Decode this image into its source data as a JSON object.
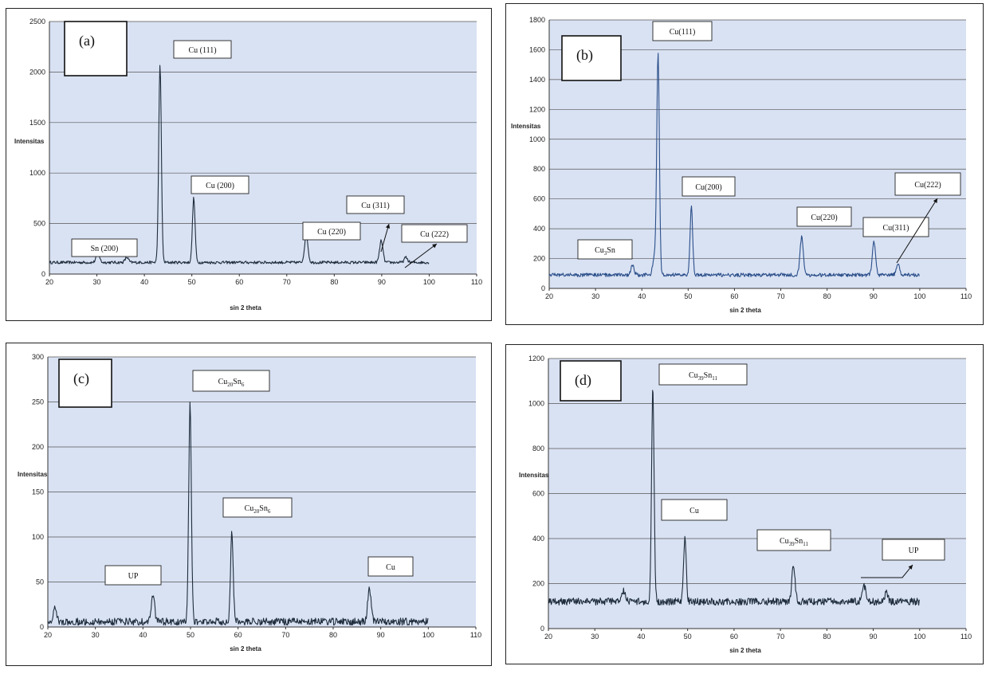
{
  "chart_data": [
    {
      "panel": "(a)",
      "type": "line",
      "xlabel": "sin 2 theta",
      "ylabel": "Intensitas",
      "xlim": [
        20,
        110
      ],
      "ylim": [
        0,
        2500
      ],
      "xticks": [
        20,
        30,
        40,
        50,
        60,
        70,
        80,
        90,
        100,
        110
      ],
      "yticks": [
        0,
        500,
        1000,
        1500,
        2000,
        2500
      ],
      "grid": true,
      "trace_color": "#1f2d3d",
      "series": {
        "x_range": [
          20,
          100
        ],
        "baseline": 115,
        "noise": 14,
        "peaks": [
          {
            "x": 30.2,
            "y": 215
          },
          {
            "x": 36.3,
            "y": 165
          },
          {
            "x": 43.3,
            "y": 2060
          },
          {
            "x": 50.4,
            "y": 755
          },
          {
            "x": 74.1,
            "y": 395
          },
          {
            "x": 89.9,
            "y": 330
          },
          {
            "x": 95.1,
            "y": 165
          }
        ]
      },
      "annotations": [
        {
          "text": "Sn (200)",
          "x": 30.2
        },
        {
          "text": "Cu (111)",
          "x": 43.3
        },
        {
          "text": "Cu (200)",
          "x": 50.4
        },
        {
          "text": "Cu (220)",
          "x": 74.1
        },
        {
          "text": "Cu (311)",
          "x": 89.9
        },
        {
          "text": "Cu (222)",
          "x": 95.1
        }
      ]
    },
    {
      "panel": "(b)",
      "type": "line",
      "xlabel": "sin 2 theta",
      "ylabel": "Intensitas",
      "xlim": [
        20,
        110
      ],
      "ylim": [
        0,
        1800
      ],
      "xticks": [
        20,
        30,
        40,
        50,
        60,
        70,
        80,
        90,
        100,
        110
      ],
      "yticks": [
        0,
        200,
        400,
        600,
        800,
        1000,
        1200,
        1400,
        1600,
        1800
      ],
      "grid": true,
      "trace_color": "#2b4f8a",
      "series": {
        "x_range": [
          20,
          100
        ],
        "baseline": 90,
        "noise": 12,
        "peaks": [
          {
            "x": 38.0,
            "y": 155
          },
          {
            "x": 42.7,
            "y": 210
          },
          {
            "x": 43.5,
            "y": 1570
          },
          {
            "x": 50.7,
            "y": 545
          },
          {
            "x": 74.5,
            "y": 345
          },
          {
            "x": 90.1,
            "y": 310
          },
          {
            "x": 95.3,
            "y": 170
          }
        ]
      },
      "annotations": [
        {
          "text": "Cu3Sn",
          "x": 38.0
        },
        {
          "text": "Cu(111)",
          "x": 43.5
        },
        {
          "text": "Cu(200)",
          "x": 50.7
        },
        {
          "text": "Cu(220)",
          "x": 74.5
        },
        {
          "text": "Cu(311)",
          "x": 90.1
        },
        {
          "text": "Cu(222)",
          "x": 95.3
        }
      ]
    },
    {
      "panel": "(c)",
      "type": "line",
      "xlabel": "sin 2 theta",
      "ylabel": "Intensitas",
      "xlim": [
        20,
        110
      ],
      "ylim": [
        0,
        300
      ],
      "xticks": [
        20,
        30,
        40,
        50,
        60,
        70,
        80,
        90,
        100,
        110
      ],
      "yticks": [
        0,
        50,
        100,
        150,
        200,
        250,
        300
      ],
      "grid": true,
      "trace_color": "#1f2d3d",
      "series": {
        "x_range": [
          20,
          100
        ],
        "baseline": 6,
        "noise": 4,
        "peaks": [
          {
            "x": 21.5,
            "y": 22
          },
          {
            "x": 42.1,
            "y": 35
          },
          {
            "x": 49.9,
            "y": 250
          },
          {
            "x": 58.7,
            "y": 105
          },
          {
            "x": 87.6,
            "y": 42
          }
        ]
      },
      "annotations": [
        {
          "text": "UP",
          "x": 42.1
        },
        {
          "text": "Cu20Sn6",
          "x": 49.9
        },
        {
          "text": "Cu20Sn6",
          "x": 58.7
        },
        {
          "text": "Cu",
          "x": 87.6
        }
      ]
    },
    {
      "panel": "(d)",
      "type": "line",
      "xlabel": "sin 2 theta",
      "ylabel": "Intensitas",
      "xlim": [
        20,
        110
      ],
      "ylim": [
        0,
        1200
      ],
      "xticks": [
        20,
        30,
        40,
        50,
        60,
        70,
        80,
        90,
        100,
        110
      ],
      "yticks": [
        0,
        200,
        400,
        600,
        800,
        1000,
        1200
      ],
      "grid": true,
      "trace_color": "#1f2d3d",
      "series": {
        "x_range": [
          20,
          100
        ],
        "baseline": 120,
        "noise": 16,
        "peaks": [
          {
            "x": 36.2,
            "y": 170
          },
          {
            "x": 42.5,
            "y": 1075
          },
          {
            "x": 49.4,
            "y": 405
          },
          {
            "x": 72.8,
            "y": 280
          },
          {
            "x": 88.0,
            "y": 195
          },
          {
            "x": 92.8,
            "y": 160
          }
        ]
      },
      "annotations": [
        {
          "text": "Cu39Sn11",
          "x": 42.5
        },
        {
          "text": "Cu",
          "x": 49.4
        },
        {
          "text": "Cu39Sn11",
          "x": 72.8
        },
        {
          "text": "UP",
          "x": 88.0
        }
      ]
    }
  ]
}
